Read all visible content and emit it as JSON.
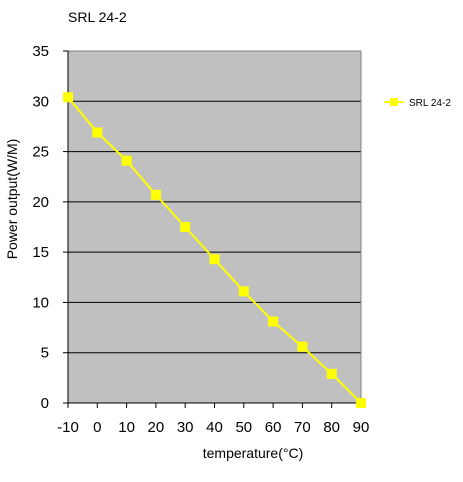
{
  "chart_data": {
    "type": "line",
    "title": "SRL 24-2",
    "xlabel": "temperature(°C)",
    "ylabel": "Power output(W/M)",
    "x": [
      -10,
      0,
      10,
      20,
      30,
      40,
      50,
      60,
      70,
      80,
      90
    ],
    "xlim": [
      -10,
      90
    ],
    "ylim": [
      0,
      35
    ],
    "xticks": [
      "-10",
      "0",
      "10",
      "20",
      "30",
      "40",
      "50",
      "60",
      "70",
      "80",
      "90"
    ],
    "yticks": [
      "0",
      "5",
      "10",
      "15",
      "20",
      "25",
      "30",
      "35"
    ],
    "grid": "horizontal",
    "legend_position": "right",
    "plot_background": "#c0c0c0",
    "series": [
      {
        "name": "SRL 24-2",
        "color": "#ffff00",
        "marker": "square",
        "values": [
          30.4,
          26.9,
          24.1,
          20.7,
          17.5,
          14.3,
          11.1,
          8.1,
          5.6,
          2.9,
          0
        ]
      }
    ]
  }
}
